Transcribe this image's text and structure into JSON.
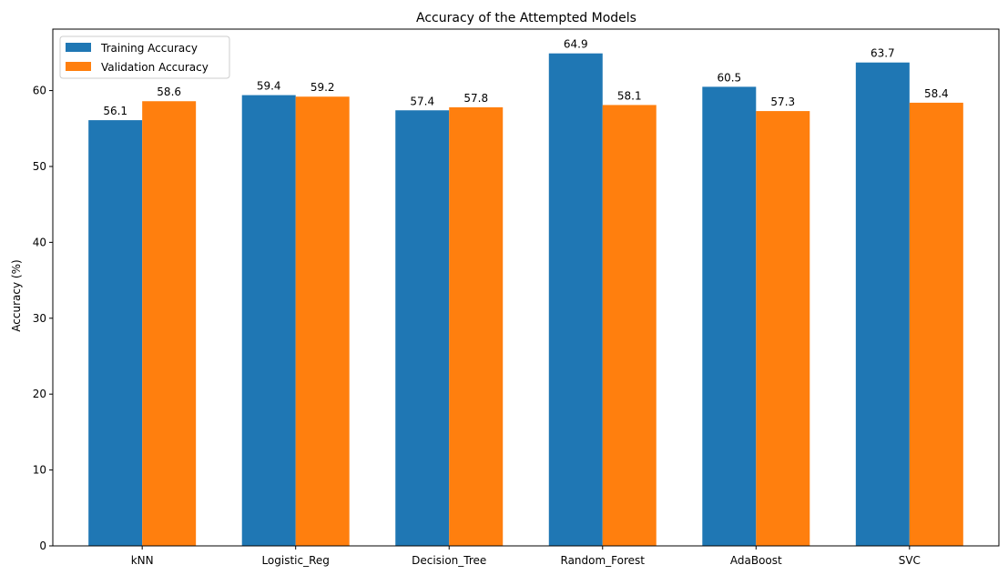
{
  "chart_data": {
    "type": "bar",
    "title": "Accuracy of the Attempted Models",
    "xlabel": "",
    "ylabel": "Accuracy (%)",
    "categories": [
      "kNN",
      "Logistic_Reg",
      "Decision_Tree",
      "Random_Forest",
      "AdaBoost",
      "SVC"
    ],
    "series": [
      {
        "name": "Training Accuracy",
        "color": "#1f77b4",
        "values": [
          56.1,
          59.4,
          57.4,
          64.9,
          60.5,
          63.7
        ]
      },
      {
        "name": "Validation Accuracy",
        "color": "#ff7f0e",
        "values": [
          58.6,
          59.2,
          57.8,
          58.1,
          57.3,
          58.4
        ]
      }
    ],
    "yticks": [
      0,
      10,
      20,
      30,
      40,
      50,
      60
    ],
    "ylim": [
      0,
      68.1
    ],
    "grid": false,
    "legend_position": "top-left",
    "data_labels": true
  }
}
